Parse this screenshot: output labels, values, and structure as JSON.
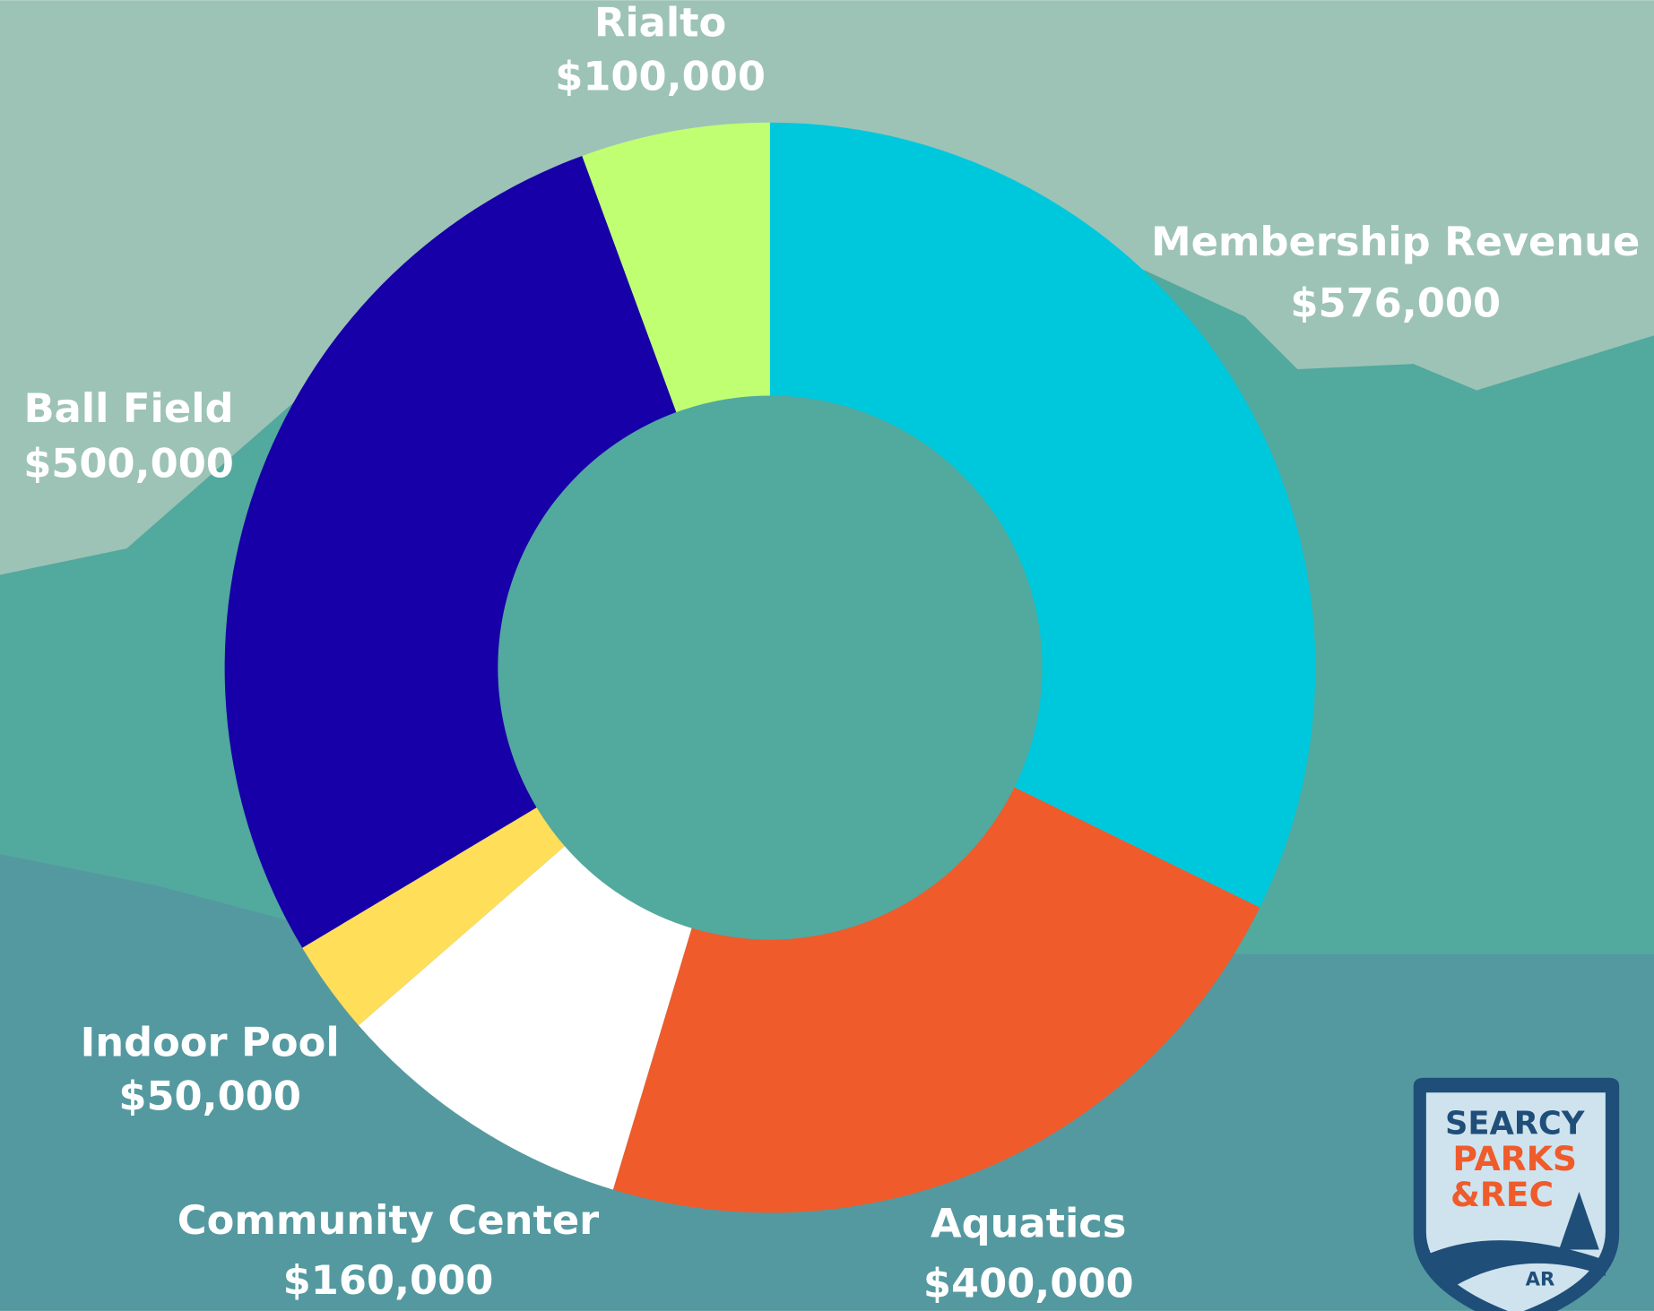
{
  "chart_data": {
    "type": "donut",
    "categories": [
      "Membership Revenue",
      "Aquatics",
      "Community Center",
      "Indoor Pool",
      "Ball Field",
      "Rialto"
    ],
    "values": [
      576000,
      400000,
      160000,
      50000,
      500000,
      100000
    ],
    "value_labels": [
      "$576,000",
      "$400,000",
      "$160,000",
      "$50,000",
      "$500,000",
      "$100,000"
    ],
    "colors": [
      "#00c8dc",
      "#ef5b2b",
      "#ffffff",
      "#ffde59",
      "#1800a8",
      "#c1ff72"
    ]
  },
  "logo": {
    "line1": "SEARCY",
    "line2": "PARKS",
    "line3": "&REC",
    "badge": "AR"
  }
}
